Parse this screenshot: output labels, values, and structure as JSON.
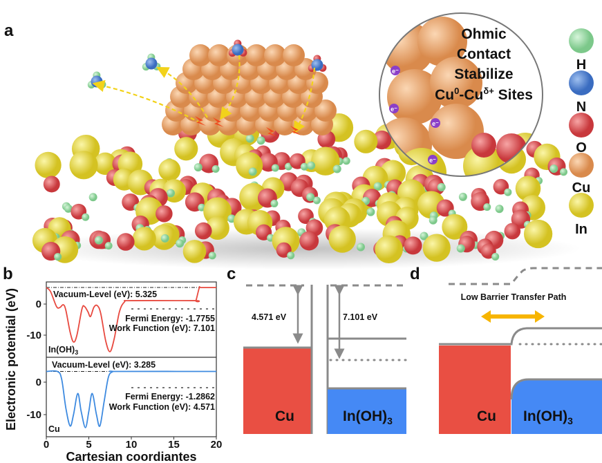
{
  "panel_labels": {
    "a": "a",
    "b": "b",
    "c": "c",
    "d": "d"
  },
  "panel_a": {
    "callout": {
      "line1": "Ohmic",
      "line2": "Contact",
      "line3": "Stabilize",
      "line4": {
        "cu0": "Cu",
        "sup0": "0",
        "dash": "-Cu",
        "supd": "δ+",
        "rest": " Sites"
      }
    },
    "electron_label": "e⁻",
    "legend": [
      {
        "label": "H",
        "color": "#8fd39a"
      },
      {
        "label": "N",
        "color": "#4a7fd0"
      },
      {
        "label": "O",
        "color": "#e0575a"
      },
      {
        "label": "Cu",
        "color": "#eaa068"
      },
      {
        "label": "In",
        "color": "#d9d34a"
      }
    ],
    "arrow_color": "#f2d21a"
  },
  "chart_data": {
    "type": "line",
    "xlabel": "Cartesian coordiantes",
    "ylabel": "Electronic potential (eV)",
    "xlim": [
      0,
      20
    ],
    "xticks": [
      "0",
      "5",
      "10",
      "15",
      "20"
    ],
    "subplots": [
      {
        "material": {
          "main": "In(OH)",
          "sub": "3"
        },
        "color": "#e8493f",
        "yticks": [
          "0",
          "-10"
        ],
        "vacuum_text": "Vacuum-Level (eV): 5.325",
        "vacuum_level": 5.325,
        "fermi_text": "Fermi Energy:  -1.7755",
        "work_function_text": "Work Function (eV): 7.101",
        "points": [
          [
            0,
            5.3
          ],
          [
            0.5,
            4
          ],
          [
            1.2,
            -0.8
          ],
          [
            1.6,
            -1.1
          ],
          [
            2.0,
            -0.2
          ],
          [
            2.3,
            -2
          ],
          [
            2.8,
            -9
          ],
          [
            3.2,
            -12.2
          ],
          [
            3.6,
            -10
          ],
          [
            4.2,
            -1.5
          ],
          [
            4.5,
            -0.8
          ],
          [
            4.9,
            -2.5
          ],
          [
            5.2,
            -4
          ],
          [
            5.6,
            -1
          ],
          [
            6.0,
            -0.5
          ],
          [
            6.4,
            -3
          ],
          [
            7.0,
            -12
          ],
          [
            7.5,
            -15.3
          ],
          [
            8.0,
            -11
          ],
          [
            8.6,
            -2.5
          ],
          [
            9.2,
            0.7
          ],
          [
            10,
            1.1
          ],
          [
            17.4,
            1.1
          ],
          [
            17.6,
            1.1
          ],
          [
            18,
            5.3
          ],
          [
            18.2,
            5.3
          ],
          [
            20,
            5.3
          ]
        ]
      },
      {
        "material": {
          "main": "Cu",
          "sub": ""
        },
        "color": "#3d8ae0",
        "yticks": [
          "0",
          "-10"
        ],
        "vacuum_text": "Vacuum-Level (eV): 3.285",
        "vacuum_level": 3.285,
        "fermi_text": "Fermi Energy: -1.2862",
        "work_function_text": "Work Function (eV): 4.571",
        "points": [
          [
            0,
            3.3
          ],
          [
            1.3,
            3.3
          ],
          [
            1.8,
            1
          ],
          [
            2.3,
            -8
          ],
          [
            2.8,
            -13.5
          ],
          [
            3.2,
            -10
          ],
          [
            3.7,
            -3.5
          ],
          [
            4.1,
            -9
          ],
          [
            4.6,
            -14
          ],
          [
            5.0,
            -9
          ],
          [
            5.4,
            -3.5
          ],
          [
            5.9,
            -10
          ],
          [
            6.3,
            -13.5
          ],
          [
            6.8,
            -6
          ],
          [
            7.3,
            1.5
          ],
          [
            7.8,
            3.2
          ],
          [
            8.5,
            3.3
          ],
          [
            20,
            3.3
          ]
        ]
      }
    ]
  },
  "panel_c": {
    "cu_work_function": "4.571 eV",
    "inoh_work_function": "7.101 eV",
    "cu_label": "Cu",
    "inoh_label": {
      "main": "In(OH)",
      "sub": "3"
    }
  },
  "panel_d": {
    "path_label": "Low Barrier Transfer Path",
    "cu_label": "Cu",
    "inoh_label": {
      "main": "In(OH)",
      "sub": "3"
    },
    "arrow_color": "#f7b500"
  },
  "colors": {
    "cu": "#e94f43",
    "inoh": "#4589f5",
    "line": "#8a8a8a"
  }
}
